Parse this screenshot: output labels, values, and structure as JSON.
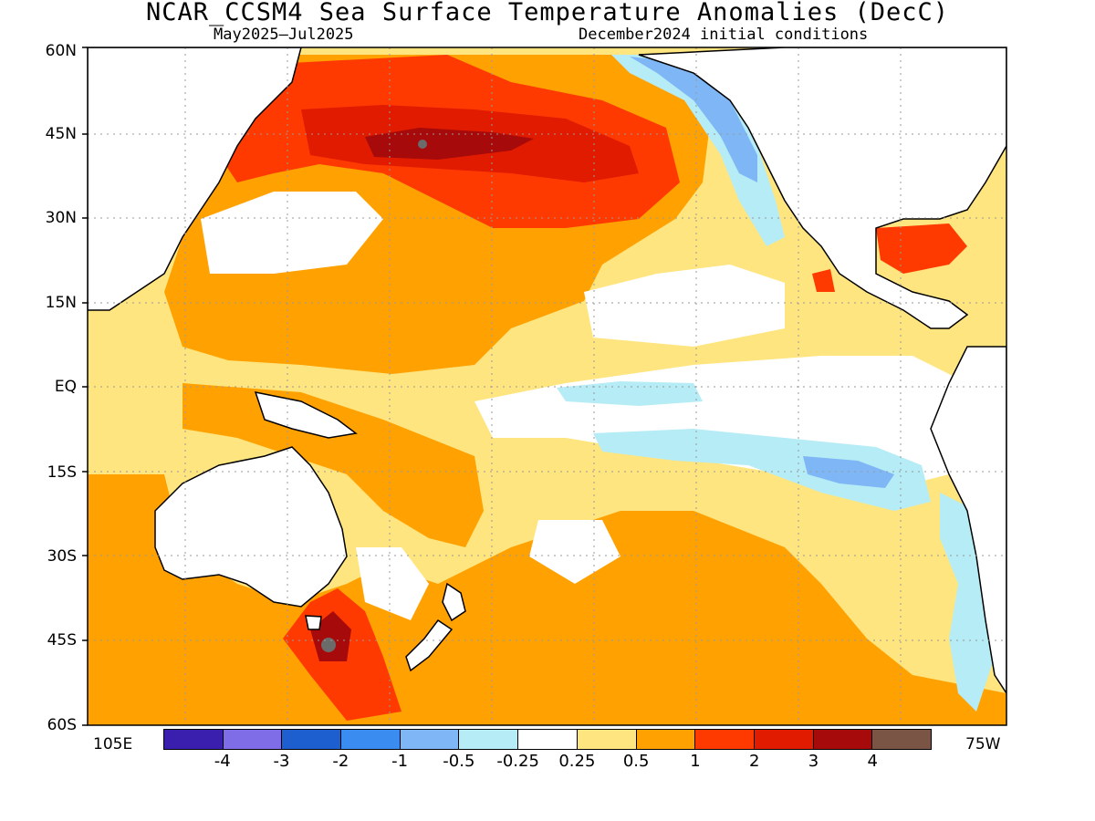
{
  "title": "NCAR_CCSM4 Sea Surface Temperature Anomalies (DecC)",
  "subtitle_left": "May2025–Jul2025",
  "subtitle_right": "December2024 initial conditions",
  "lat_labels": [
    "60N",
    "45N",
    "30N",
    "15N",
    "EQ",
    "15S",
    "30S",
    "45S",
    "60S"
  ],
  "lon_labels": {
    "west_edge": "105E",
    "east_edge": "75W"
  },
  "colorbar": {
    "ticks": [
      "-4",
      "-3",
      "-2",
      "-1",
      "-0.5",
      "-0.25",
      "0.25",
      "0.5",
      "1",
      "2",
      "3",
      "4"
    ],
    "colors": [
      "#3a1fae",
      "#7f6de8",
      "#1e5fd0",
      "#3a8cf0",
      "#7fb6f5",
      "#b5ecf5",
      "#ffffff",
      "#ffe57f",
      "#ffa100",
      "#ff3a00",
      "#e11b00",
      "#a60a0a",
      "#7a5445"
    ]
  }
}
